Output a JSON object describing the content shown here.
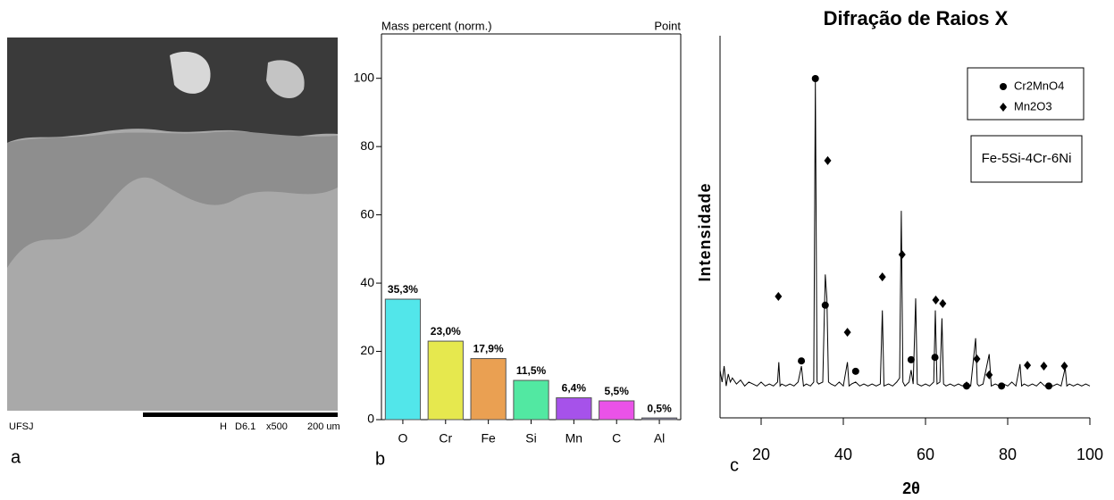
{
  "image_a": {
    "label": "a",
    "footer": [
      "UFSJ",
      "H",
      "D6.1",
      "x500",
      "200 um"
    ]
  },
  "chart_data": [
    {
      "type": "bar",
      "label": "b",
      "title": "Mass percent (norm.)",
      "subtitle": "Point",
      "categories": [
        "O",
        "Cr",
        "Fe",
        "Si",
        "Mn",
        "C",
        "Al"
      ],
      "values": [
        35.3,
        23.0,
        17.9,
        11.5,
        6.4,
        5.5,
        0.5
      ],
      "value_labels": [
        "35,3%",
        "23,0%",
        "17,9%",
        "11,5%",
        "6,4%",
        "5,5%",
        "0,5%"
      ],
      "colors": [
        "#52e6ea",
        "#e6e84e",
        "#eaa052",
        "#52e8a2",
        "#a652ea",
        "#ea52e8",
        "#8a8aa8"
      ],
      "ylim": [
        0,
        113
      ],
      "yticks": [
        0,
        20,
        40,
        60,
        80,
        100
      ]
    },
    {
      "type": "line",
      "label": "c",
      "title": "Difração de Raios X",
      "xlabel": "2θ",
      "ylabel": "Intensidade",
      "annotation": "Fe-5Si-4Cr-6Ni",
      "xlim": [
        10,
        100
      ],
      "xticks": [
        20,
        40,
        60,
        80,
        100
      ],
      "ylim": [
        0,
        100
      ],
      "series": [
        {
          "color": "#000000",
          "x": [
            10,
            10.5,
            11,
            11.5,
            12,
            12.5,
            13,
            14,
            15,
            16,
            17,
            18,
            19,
            20,
            21,
            22,
            23,
            24,
            24.3,
            24.6,
            25,
            26,
            27,
            28,
            29,
            29.8,
            30.3,
            31,
            32,
            32.8,
            33.2,
            33.6,
            34,
            35,
            35.6,
            36.0,
            36.4,
            37,
            38,
            39,
            40,
            41,
            41.4,
            42,
            43,
            44,
            45,
            46,
            47,
            48,
            49,
            49.5,
            49.9,
            51,
            52,
            53,
            53.7,
            54.1,
            54.5,
            55,
            56,
            56.5,
            57,
            57.6,
            58,
            59,
            60,
            61,
            62,
            62.4,
            62.8,
            63.5,
            64,
            64.4,
            65,
            66,
            67,
            68,
            69,
            70,
            71,
            72.2,
            72.6,
            73,
            74,
            75.5,
            76,
            77,
            78,
            79,
            80,
            81,
            82,
            83,
            83.4,
            84,
            85,
            86,
            87,
            88,
            89,
            90,
            91,
            92,
            93,
            94,
            94.4,
            95,
            96,
            97,
            98,
            99,
            100
          ],
          "values": [
            12,
            9,
            13,
            8,
            11,
            9,
            10,
            8.5,
            9.5,
            8,
            9,
            8.5,
            8,
            9,
            8,
            8.5,
            8,
            9,
            14,
            8,
            8.5,
            8,
            8.5,
            8,
            9,
            13,
            8,
            8.5,
            8,
            9,
            85,
            9,
            8.5,
            9,
            36,
            30,
            9,
            8.5,
            8,
            9,
            8,
            14,
            8,
            8.5,
            9,
            8,
            8.5,
            8,
            8.5,
            8,
            8.5,
            27,
            8,
            8.5,
            8,
            9,
            10,
            52,
            9,
            8,
            9,
            12,
            8.5,
            30,
            8.5,
            8,
            8.5,
            8,
            9,
            27,
            8.5,
            9,
            25,
            8.5,
            8,
            8.5,
            8,
            8.5,
            8,
            9,
            8,
            20,
            8.5,
            8,
            8.5,
            16,
            8,
            8.5,
            8,
            8.5,
            8,
            9,
            8,
            13.5,
            8,
            8.5,
            8,
            8.5,
            8,
            9,
            8,
            8.5,
            8,
            8.5,
            8,
            12.6,
            8,
            8.5,
            8,
            8.5,
            8,
            8.5,
            8
          ]
        },
        {
          "name": "Cr2MnO4",
          "marker": "circle",
          "color": "#000000",
          "x": [
            29.8,
            33.2,
            35.6,
            43,
            56.5,
            62.3,
            70,
            78.5,
            90
          ],
          "values": [
            14.3,
            85.2,
            28.3,
            11.7,
            14.6,
            15.2,
            8,
            8,
            8
          ]
        },
        {
          "name": "Mn2O3",
          "marker": "diamond",
          "color": "#000000",
          "x": [
            24.2,
            36.2,
            41,
            49.5,
            54.3,
            62.5,
            64.2,
            72.5,
            75.5,
            84.8,
            88.8,
            93.8
          ],
          "values": [
            30.5,
            64.6,
            21.5,
            35.4,
            41,
            29.6,
            28.7,
            14.8,
            10.8,
            13.2,
            13,
            13
          ]
        }
      ]
    }
  ]
}
